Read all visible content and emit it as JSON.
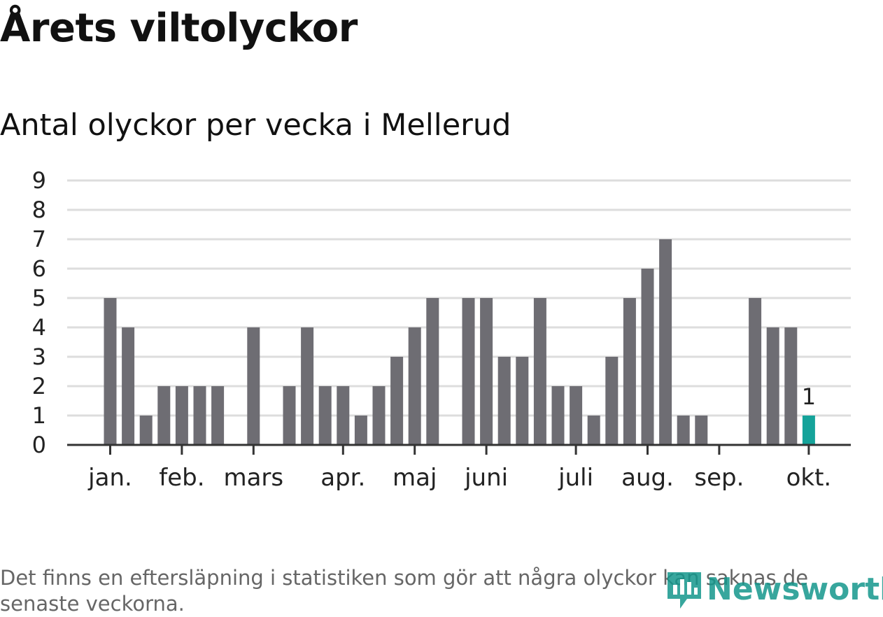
{
  "title": "Årets viltolyckor",
  "subtitle": "Antal olyckor per vecka i Mellerud",
  "footnote": "Det finns en eftersläpning i statistiken som gör att några olyckor kan saknas de senaste veckorna.",
  "brand": {
    "name": "Newsworthy",
    "icon": "newsworthy-logo-icon"
  },
  "colors": {
    "bar": "#6e6d73",
    "highlight": "#15a39a",
    "grid": "#dddddd",
    "axis": "#333333",
    "text": "#222222"
  },
  "chart_data": {
    "type": "bar",
    "title": "Antal olyckor per vecka i Mellerud",
    "xlabel": "",
    "ylabel": "",
    "ylim": [
      0,
      9
    ],
    "yticks": [
      "0",
      "1",
      "2",
      "3",
      "4",
      "5",
      "6",
      "7",
      "8",
      "9"
    ],
    "grid": true,
    "values": [
      5,
      4,
      1,
      2,
      2,
      2,
      2,
      0,
      4,
      0,
      2,
      4,
      2,
      2,
      1,
      2,
      3,
      4,
      5,
      0,
      5,
      5,
      3,
      3,
      5,
      2,
      2,
      1,
      3,
      5,
      6,
      7,
      1,
      1,
      0,
      0,
      5,
      4,
      4,
      1
    ],
    "highlight_index": 39,
    "highlight_label": "1",
    "month_labels": [
      {
        "label": "jan.",
        "week": 0
      },
      {
        "label": "feb.",
        "week": 4
      },
      {
        "label": "mars",
        "week": 8
      },
      {
        "label": "apr.",
        "week": 13
      },
      {
        "label": "maj",
        "week": 17
      },
      {
        "label": "juni",
        "week": 21
      },
      {
        "label": "juli",
        "week": 26
      },
      {
        "label": "aug.",
        "week": 30
      },
      {
        "label": "sep.",
        "week": 34
      },
      {
        "label": "okt.",
        "week": 39
      }
    ]
  }
}
